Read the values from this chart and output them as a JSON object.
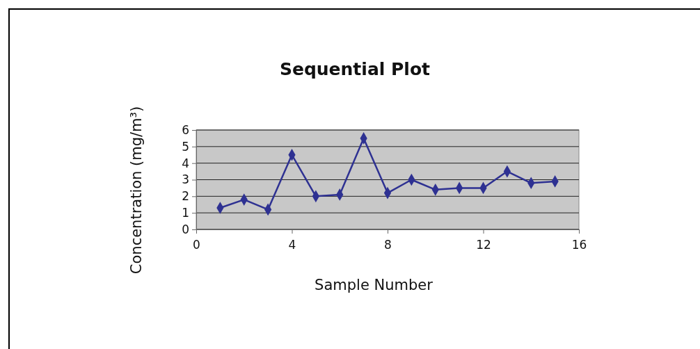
{
  "chart_data": {
    "type": "line",
    "title": "Sequential Plot",
    "xlabel": "Sample Number",
    "ylabel": "Concentration (mg/m³)",
    "x": [
      1,
      2,
      3,
      4,
      5,
      6,
      7,
      8,
      9,
      10,
      11,
      12,
      13,
      14,
      15
    ],
    "series": [
      {
        "color": "#2e3192",
        "values": [
          1.3,
          1.8,
          1.2,
          4.5,
          2.0,
          2.1,
          5.5,
          2.2,
          3.0,
          2.4,
          2.5,
          2.5,
          3.5,
          2.8,
          2.9
        ]
      }
    ],
    "xlim": [
      0,
      16
    ],
    "xticks": [
      0,
      4,
      8,
      12,
      16
    ],
    "ylim": [
      0,
      6
    ],
    "yticks": [
      0,
      1,
      2,
      3,
      4,
      5,
      6
    ],
    "grid": "y",
    "marker": "diamond",
    "line_style": "solid"
  }
}
